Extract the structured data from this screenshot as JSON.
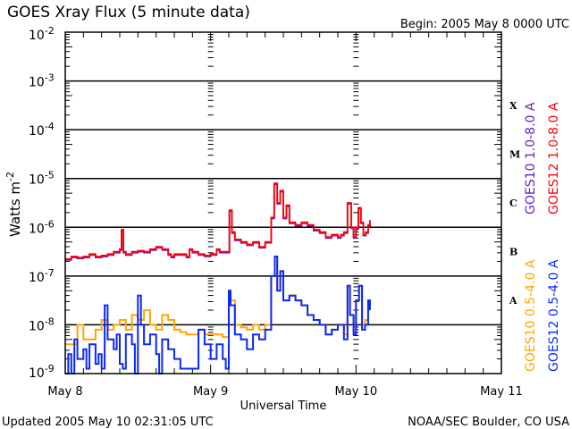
{
  "chart_data": {
    "type": "line",
    "title": "GOES Xray Flux (5 minute data)",
    "begin_label": "Begin:  2005 May 8 0000 UTC",
    "xlabel": "Universal Time",
    "ylabel_main": "Watts m",
    "ylabel_exp": "-2",
    "yscale": "log",
    "ylim_log10": [
      -9,
      -2
    ],
    "y_ticks": [
      {
        "base": "10",
        "exp": "-2",
        "log": -2
      },
      {
        "base": "10",
        "exp": "-3",
        "log": -3
      },
      {
        "base": "10",
        "exp": "-4",
        "log": -4
      },
      {
        "base": "10",
        "exp": "-5",
        "log": -5
      },
      {
        "base": "10",
        "exp": "-6",
        "log": -6
      },
      {
        "base": "10",
        "exp": "-7",
        "log": -7
      },
      {
        "base": "10",
        "exp": "-8",
        "log": -8
      },
      {
        "base": "10",
        "exp": "-9",
        "log": -9
      }
    ],
    "x_unit": "hours since 2005 May 8 0000 UTC",
    "xlim": [
      0,
      72
    ],
    "x_ticks": [
      {
        "label": "May 8",
        "hour": 0
      },
      {
        "label": "May 9",
        "hour": 24
      },
      {
        "label": "May 10",
        "hour": 48
      },
      {
        "label": "May 11",
        "hour": 72
      }
    ],
    "flare_classes": [
      {
        "label": "X",
        "log": -3.5
      },
      {
        "label": "M",
        "log": -4.5
      },
      {
        "label": "C",
        "log": -5.5
      },
      {
        "label": "B",
        "log": -6.5
      },
      {
        "label": "A",
        "log": -7.5
      }
    ],
    "grid": "horizontal at decades",
    "legend_placement": "right, rotated",
    "series": [
      {
        "name": "GOES10 1.0-8.0 A",
        "color": "#6a1fc8",
        "points_same_as": "GOES12 1.0-8.0 A",
        "offset_log": -0.02
      },
      {
        "name": "GOES12 1.0-8.0 A",
        "color": "#ff0000",
        "points": [
          [
            0,
            -6.65
          ],
          [
            1,
            -6.6
          ],
          [
            2,
            -6.62
          ],
          [
            3,
            -6.6
          ],
          [
            4,
            -6.55
          ],
          [
            5,
            -6.6
          ],
          [
            6,
            -6.58
          ],
          [
            7,
            -6.55
          ],
          [
            8,
            -6.5
          ],
          [
            9,
            -6.45
          ],
          [
            9.3,
            -6.05
          ],
          [
            9.6,
            -6.5
          ],
          [
            10,
            -6.55
          ],
          [
            11,
            -6.5
          ],
          [
            12,
            -6.48
          ],
          [
            13,
            -6.5
          ],
          [
            14,
            -6.45
          ],
          [
            15,
            -6.4
          ],
          [
            16,
            -6.45
          ],
          [
            17,
            -6.55
          ],
          [
            17.5,
            -6.6
          ],
          [
            18,
            -6.55
          ],
          [
            19,
            -6.55
          ],
          [
            20,
            -6.6
          ],
          [
            20.5,
            -6.45
          ],
          [
            21,
            -6.5
          ],
          [
            22,
            -6.55
          ],
          [
            23,
            -6.58
          ],
          [
            24,
            -6.55
          ],
          [
            25,
            -6.45
          ],
          [
            25.5,
            -6.5
          ],
          [
            26.5,
            -6.5
          ],
          [
            27.1,
            -5.65
          ],
          [
            27.5,
            -6.1
          ],
          [
            28,
            -6.25
          ],
          [
            29,
            -6.3
          ],
          [
            30,
            -6.35
          ],
          [
            31,
            -6.3
          ],
          [
            32,
            -6.4
          ],
          [
            33,
            -6.3
          ],
          [
            34,
            -5.8
          ],
          [
            34.5,
            -5.1
          ],
          [
            35,
            -5.5
          ],
          [
            35.5,
            -5.25
          ],
          [
            36,
            -5.8
          ],
          [
            36.5,
            -5.55
          ],
          [
            37,
            -5.9
          ],
          [
            38,
            -5.95
          ],
          [
            39,
            -5.9
          ],
          [
            40,
            -5.95
          ],
          [
            41,
            -6.05
          ],
          [
            42,
            -6.1
          ],
          [
            43,
            -6.2
          ],
          [
            44,
            -6.15
          ],
          [
            45,
            -6.2
          ],
          [
            45.5,
            -6.15
          ],
          [
            46,
            -6.1
          ],
          [
            46.6,
            -5.5
          ],
          [
            47.2,
            -6.0
          ],
          [
            47.6,
            -6.2
          ],
          [
            48,
            -6.0
          ],
          [
            48.4,
            -5.6
          ],
          [
            48.8,
            -5.9
          ],
          [
            49.2,
            -6.15
          ],
          [
            49.6,
            -6.1
          ],
          [
            50,
            -5.95
          ],
          [
            50.3,
            -5.85
          ]
        ]
      },
      {
        "name": "GOES10 0.5-4.0 A",
        "color": "#ffa500",
        "points": [
          [
            0,
            -8.4
          ],
          [
            1,
            -8.4
          ],
          [
            2,
            -8.0
          ],
          [
            3,
            -8.3
          ],
          [
            4,
            -8.3
          ],
          [
            5,
            -8.1
          ],
          [
            6,
            -7.9
          ],
          [
            7,
            -8.1
          ],
          [
            8,
            -8.0
          ],
          [
            9,
            -7.9
          ],
          [
            10,
            -8.1
          ],
          [
            11,
            -7.8
          ],
          [
            12,
            -7.9
          ],
          [
            13,
            -7.7
          ],
          [
            14,
            -8.0
          ],
          [
            15,
            -8.1
          ],
          [
            16,
            -7.8
          ],
          [
            17,
            -7.9
          ],
          [
            18,
            -8.1
          ],
          [
            19,
            -8.15
          ],
          [
            20,
            -8.2
          ],
          [
            21,
            -8.2
          ],
          [
            22,
            -8.1
          ],
          [
            23,
            -8.2
          ],
          [
            24,
            -8.2
          ],
          [
            25,
            -8.2
          ],
          [
            26,
            -8.25
          ],
          [
            27,
            -7.5
          ],
          [
            28,
            -8.0
          ],
          [
            29,
            -8.05
          ],
          [
            30,
            -8.1
          ],
          [
            31,
            -8.0
          ],
          [
            32,
            -8.1
          ],
          [
            33,
            -8.0
          ],
          [
            34,
            -7.0
          ],
          [
            34.6,
            -6.6
          ],
          [
            35,
            -7.3
          ],
          [
            35.5,
            -6.9
          ],
          [
            36,
            -7.5
          ],
          [
            37,
            -7.4
          ],
          [
            38,
            -7.5
          ],
          [
            39,
            -7.6
          ],
          [
            40,
            -7.8
          ],
          [
            41,
            -7.9
          ],
          [
            42,
            -8.0
          ],
          [
            43,
            -8.2
          ],
          [
            44,
            -8.1
          ],
          [
            45,
            -8.0
          ],
          [
            46,
            -8.2
          ],
          [
            46.6,
            -7.2
          ],
          [
            47,
            -7.8
          ],
          [
            47.6,
            -8.1
          ],
          [
            48,
            -7.5
          ],
          [
            48.5,
            -7.2
          ],
          [
            49,
            -8.0
          ],
          [
            49.5,
            -7.9
          ],
          [
            50,
            -7.5
          ],
          [
            50.3,
            -7.6
          ]
        ]
      },
      {
        "name": "GOES12 0.5-4.0 A",
        "color": "#0a28ff",
        "points": [
          [
            0,
            -9.0
          ],
          [
            0.5,
            -8.6
          ],
          [
            1,
            -9.0
          ],
          [
            1.5,
            -8.3
          ],
          [
            2,
            -8.7
          ],
          [
            3,
            -8.5
          ],
          [
            3.5,
            -8.9
          ],
          [
            4,
            -8.4
          ],
          [
            5,
            -8.8
          ],
          [
            5.5,
            -8.6
          ],
          [
            6,
            -8.9
          ],
          [
            6.5,
            -7.6
          ],
          [
            7,
            -8.3
          ],
          [
            8,
            -8.5
          ],
          [
            8.5,
            -8.2
          ],
          [
            9,
            -8.8
          ],
          [
            9.5,
            -8.9
          ],
          [
            10,
            -8.2
          ],
          [
            11,
            -8.4
          ],
          [
            11.5,
            -9.0
          ],
          [
            12,
            -7.4
          ],
          [
            12.5,
            -8.0
          ],
          [
            13,
            -8.4
          ],
          [
            14,
            -8.2
          ],
          [
            15,
            -8.6
          ],
          [
            15.5,
            -9.0
          ],
          [
            16,
            -8.3
          ],
          [
            17,
            -8.5
          ],
          [
            18,
            -8.7
          ],
          [
            19,
            -8.9
          ],
          [
            20,
            -8.9
          ],
          [
            21,
            -8.9
          ],
          [
            22,
            -8.1
          ],
          [
            23,
            -8.4
          ],
          [
            24,
            -8.7
          ],
          [
            25,
            -8.4
          ],
          [
            26,
            -8.7
          ],
          [
            26.5,
            -8.9
          ],
          [
            27,
            -7.3
          ],
          [
            27.3,
            -7.6
          ],
          [
            28,
            -8.2
          ],
          [
            29,
            -8.3
          ],
          [
            30,
            -8.5
          ],
          [
            31,
            -8.2
          ],
          [
            32,
            -8.3
          ],
          [
            33,
            -8.1
          ],
          [
            34,
            -7.0
          ],
          [
            34.6,
            -6.6
          ],
          [
            35,
            -7.3
          ],
          [
            35.5,
            -6.9
          ],
          [
            36,
            -7.5
          ],
          [
            37,
            -7.4
          ],
          [
            38,
            -7.5
          ],
          [
            39,
            -7.6
          ],
          [
            40,
            -7.8
          ],
          [
            41,
            -7.9
          ],
          [
            42,
            -8.0
          ],
          [
            43,
            -8.2
          ],
          [
            44,
            -8.1
          ],
          [
            45,
            -8.0
          ],
          [
            46,
            -8.3
          ],
          [
            46.6,
            -7.2
          ],
          [
            47,
            -7.8
          ],
          [
            47.6,
            -8.2
          ],
          [
            48,
            -7.5
          ],
          [
            48.5,
            -7.2
          ],
          [
            49,
            -8.1
          ],
          [
            49.5,
            -8.0
          ],
          [
            50,
            -7.5
          ],
          [
            50.3,
            -7.7
          ]
        ]
      }
    ]
  },
  "footer": {
    "updated": "Updated 2005 May 10 02:31:05 UTC",
    "credit": "NOAA/SEC Boulder, CO USA"
  }
}
